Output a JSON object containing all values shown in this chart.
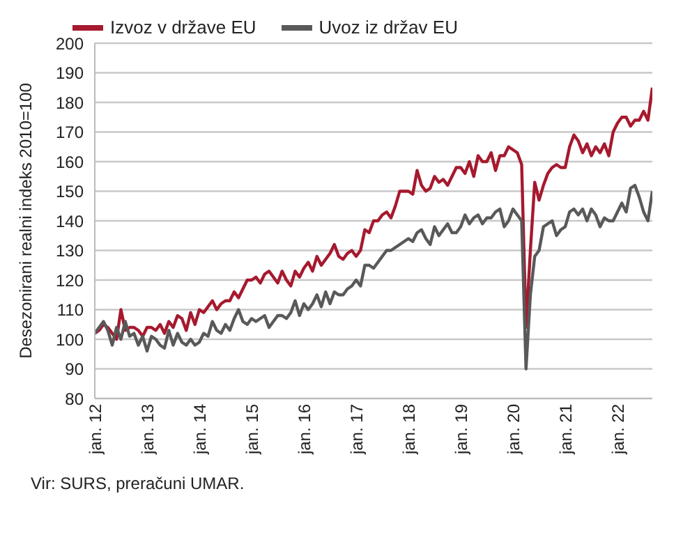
{
  "chart_data": {
    "type": "line",
    "ylabel": "Desezonirani realni indeks 2010=100",
    "annotations": [
      "Vir: SURS, preračuni UMAR."
    ],
    "x": [
      "2012-01",
      "2012-02",
      "2012-03",
      "2012-04",
      "2012-05",
      "2012-06",
      "2012-07",
      "2012-08",
      "2012-09",
      "2012-10",
      "2012-11",
      "2012-12",
      "2013-01",
      "2013-02",
      "2013-03",
      "2013-04",
      "2013-05",
      "2013-06",
      "2013-07",
      "2013-08",
      "2013-09",
      "2013-10",
      "2013-11",
      "2013-12",
      "2014-01",
      "2014-02",
      "2014-03",
      "2014-04",
      "2014-05",
      "2014-06",
      "2014-07",
      "2014-08",
      "2014-09",
      "2014-10",
      "2014-11",
      "2014-12",
      "2015-01",
      "2015-02",
      "2015-03",
      "2015-04",
      "2015-05",
      "2015-06",
      "2015-07",
      "2015-08",
      "2015-09",
      "2015-10",
      "2015-11",
      "2015-12",
      "2016-01",
      "2016-02",
      "2016-03",
      "2016-04",
      "2016-05",
      "2016-06",
      "2016-07",
      "2016-08",
      "2016-09",
      "2016-10",
      "2016-11",
      "2016-12",
      "2017-01",
      "2017-02",
      "2017-03",
      "2017-04",
      "2017-05",
      "2017-06",
      "2017-07",
      "2017-08",
      "2017-09",
      "2017-10",
      "2017-11",
      "2017-12",
      "2018-01",
      "2018-02",
      "2018-03",
      "2018-04",
      "2018-05",
      "2018-06",
      "2018-07",
      "2018-08",
      "2018-09",
      "2018-10",
      "2018-11",
      "2018-12",
      "2019-01",
      "2019-02",
      "2019-03",
      "2019-04",
      "2019-05",
      "2019-06",
      "2019-07",
      "2019-08",
      "2019-09",
      "2019-10",
      "2019-11",
      "2019-12",
      "2020-01",
      "2020-02",
      "2020-03",
      "2020-04",
      "2020-05",
      "2020-06",
      "2020-07",
      "2020-08",
      "2020-09",
      "2020-10",
      "2020-11",
      "2020-12",
      "2021-01",
      "2021-02",
      "2021-03",
      "2021-04",
      "2021-05",
      "2021-06",
      "2021-07",
      "2021-08",
      "2021-09",
      "2021-10",
      "2021-11",
      "2021-12",
      "2022-01",
      "2022-02",
      "2022-03",
      "2022-04",
      "2022-05",
      "2022-06",
      "2022-07",
      "2022-08",
      "2022-09"
    ],
    "series": [
      {
        "name": "Izvoz v države EU",
        "color": "#a6192e",
        "values": [
          102,
          103,
          105,
          104,
          102,
          100,
          110,
          103,
          104,
          104,
          103,
          101,
          104,
          104,
          103,
          105,
          102,
          106,
          104,
          108,
          107,
          103,
          109,
          105,
          110,
          109,
          111,
          113,
          110,
          112,
          113,
          113,
          116,
          114,
          117,
          120,
          120,
          121,
          119,
          122,
          123,
          121,
          119,
          123,
          120,
          118,
          123,
          121,
          124,
          126,
          123,
          128,
          125,
          127,
          129,
          132,
          128,
          127,
          129,
          130,
          128,
          130,
          137,
          136,
          140,
          140,
          142,
          143,
          141,
          145,
          150,
          150,
          150,
          149,
          157,
          152,
          150,
          151,
          155,
          153,
          154,
          152,
          155,
          158,
          158,
          156,
          160,
          155,
          162,
          160,
          160,
          163,
          157,
          162,
          162,
          165,
          164,
          163,
          159,
          104,
          130,
          153,
          147,
          152,
          156,
          158,
          159,
          158,
          158,
          165,
          169,
          167,
          163,
          166,
          162,
          165,
          163,
          166,
          162,
          170,
          173,
          175,
          175,
          172,
          174,
          174,
          177,
          174,
          185
        ]
      },
      {
        "name": "Uvoz iz držav EU",
        "color": "#595959",
        "values": [
          102,
          104,
          106,
          103,
          98,
          104,
          100,
          106,
          101,
          102,
          98,
          101,
          96,
          101,
          100,
          98,
          97,
          103,
          98,
          102,
          99,
          98,
          100,
          98,
          99,
          102,
          101,
          106,
          103,
          102,
          105,
          103,
          107,
          110,
          106,
          105,
          107,
          106,
          107,
          108,
          104,
          106,
          108,
          108,
          107,
          109,
          113,
          108,
          112,
          110,
          112,
          115,
          111,
          116,
          112,
          116,
          115,
          115,
          117,
          118,
          120,
          118,
          125,
          125,
          124,
          126,
          128,
          130,
          130,
          131,
          132,
          133,
          134,
          133,
          136,
          137,
          134,
          132,
          138,
          135,
          137,
          139,
          136,
          136,
          138,
          142,
          139,
          141,
          142,
          139,
          141,
          141,
          143,
          144,
          138,
          140,
          144,
          142,
          140,
          90,
          115,
          128,
          130,
          138,
          139,
          140,
          135,
          137,
          138,
          143,
          144,
          142,
          144,
          140,
          144,
          142,
          138,
          141,
          140,
          140,
          143,
          146,
          143,
          151,
          152,
          148,
          143,
          140,
          150
        ]
      }
    ],
    "xlim": [
      "2012-01",
      "2022-09"
    ],
    "xticks": [
      {
        "value": "2012-01",
        "label": "jan. 12"
      },
      {
        "value": "2013-01",
        "label": "jan. 13"
      },
      {
        "value": "2014-01",
        "label": "jan. 14"
      },
      {
        "value": "2015-01",
        "label": "jan. 15"
      },
      {
        "value": "2016-01",
        "label": "jan. 16"
      },
      {
        "value": "2017-01",
        "label": "jan. 17"
      },
      {
        "value": "2018-01",
        "label": "jan. 18"
      },
      {
        "value": "2019-01",
        "label": "jan. 19"
      },
      {
        "value": "2020-01",
        "label": "jan. 20"
      },
      {
        "value": "2021-01",
        "label": "jan. 21"
      },
      {
        "value": "2022-01",
        "label": "jan. 22"
      }
    ],
    "ylim": [
      80,
      200
    ],
    "yticks": [
      80,
      90,
      100,
      110,
      120,
      130,
      140,
      150,
      160,
      170,
      180,
      190,
      200
    ],
    "grid": "y",
    "legend": "top left",
    "marker": "none",
    "line_style": "solid"
  }
}
